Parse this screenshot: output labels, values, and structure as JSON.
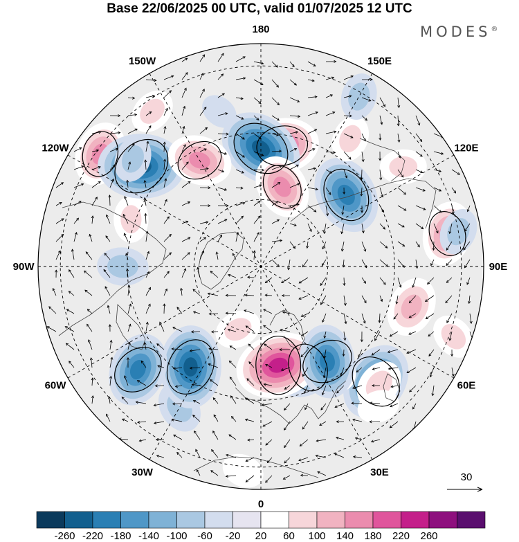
{
  "header": {
    "title": "Base 22/06/2025 00 UTC, valid 01/07/2025 12 UTC",
    "brand": "MODES",
    "brand_mark": "®"
  },
  "map": {
    "projection": "north-polar-stereographic",
    "longitude_labels": [
      "180",
      "150E",
      "120E",
      "90E",
      "60E",
      "30E",
      "0",
      "30W",
      "60W",
      "90W",
      "120W",
      "150W"
    ],
    "wind_reference_vector_label": "30",
    "colors": {
      "background_land": "#efefef",
      "grid": "#000000",
      "coast": "#444444"
    }
  },
  "colorbar": {
    "labels": [
      "-260",
      "-220",
      "-180",
      "-140",
      "-100",
      "-60",
      "-20",
      "20",
      "60",
      "100",
      "140",
      "180",
      "220",
      "260"
    ],
    "colors": [
      "#0b3a5c",
      "#125f8e",
      "#2a7fb4",
      "#4f97c7",
      "#7fb2d6",
      "#aac8e2",
      "#d3ddee",
      "#e6e4f0",
      "#ffffff",
      "#f7d6da",
      "#f1b3c1",
      "#eb8cae",
      "#e0559c",
      "#c41f8a",
      "#8e0f7e",
      "#5a0e6e"
    ]
  },
  "anomalies": [
    {
      "lon": 170,
      "r": 0.55,
      "val": 180
    },
    {
      "lon": 180,
      "r": 0.53,
      "val": -230
    },
    {
      "lon": 165,
      "r": 0.37,
      "val": 140
    },
    {
      "lon": 130,
      "r": 0.5,
      "val": -200
    },
    {
      "lon": 145,
      "r": 0.7,
      "val": 60
    },
    {
      "lon": 100,
      "r": 0.85,
      "val": 140
    },
    {
      "lon": 75,
      "r": 0.7,
      "val": 120
    },
    {
      "lon": 45,
      "r": 0.73,
      "val": -200
    },
    {
      "lon": 25,
      "r": 0.5,
      "val": -160
    },
    {
      "lon": 10,
      "r": 0.45,
      "val": 230
    },
    {
      "lon": 35,
      "r": 0.55,
      "val": 100
    },
    {
      "lon": 35,
      "r": 0.52,
      "val": -180
    },
    {
      "lon": 45,
      "r": 0.75,
      "val": 80
    },
    {
      "lon": 40,
      "r": 0.82,
      "val": 40
    },
    {
      "lon": 70,
      "r": 0.92,
      "val": 60
    },
    {
      "lon": 100,
      "r": 0.9,
      "val": -60
    },
    {
      "lon": 125,
      "r": 0.78,
      "val": 60
    },
    {
      "lon": -30,
      "r": 0.73,
      "val": -80
    },
    {
      "lon": -35,
      "r": 0.55,
      "val": -220
    },
    {
      "lon": -50,
      "r": 0.72,
      "val": -180
    },
    {
      "lon": -110,
      "r": 0.62,
      "val": 60
    },
    {
      "lon": -125,
      "r": 0.88,
      "val": 140
    },
    {
      "lon": -90,
      "r": 0.62,
      "val": -80
    },
    {
      "lon": -130,
      "r": 0.7,
      "val": -240
    },
    {
      "lon": -150,
      "r": 0.55,
      "val": 140
    },
    {
      "lon": -165,
      "r": 0.72,
      "val": -20
    },
    {
      "lon": -130,
      "r": 0.75,
      "val": -60
    },
    {
      "lon": -145,
      "r": 0.85,
      "val": 60
    },
    {
      "lon": 150,
      "r": 0.88,
      "val": -60
    },
    {
      "lon": -20,
      "r": 0.3,
      "val": 60
    },
    {
      "lon": -5,
      "r": 0.92,
      "val": 40
    }
  ]
}
